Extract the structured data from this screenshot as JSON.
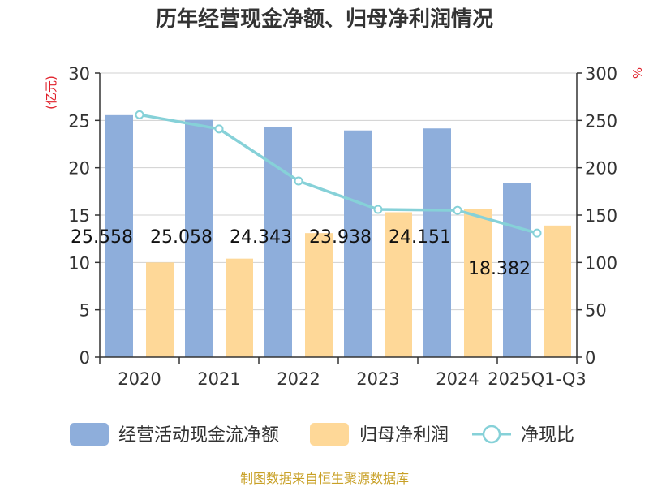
{
  "chart_data": {
    "type": "bar",
    "title": "历年经营现金净额、归母净利润情况",
    "categories": [
      "2020",
      "2021",
      "2022",
      "2023",
      "2024",
      "2025Q1-Q3"
    ],
    "series": [
      {
        "name": "经营活动现金流净额",
        "kind": "bar",
        "axis": "left",
        "values": [
          25.558,
          25.058,
          24.343,
          23.938,
          24.151,
          18.382
        ],
        "labels": [
          "25.558",
          "25.058",
          "24.343",
          "23.938",
          "24.151",
          "18.382"
        ]
      },
      {
        "name": "归母净利润",
        "kind": "bar",
        "axis": "left",
        "values": [
          10.0,
          10.4,
          13.1,
          15.3,
          15.6,
          13.9
        ]
      },
      {
        "name": "净现比",
        "kind": "line",
        "axis": "right",
        "values": [
          256,
          241,
          186,
          156,
          155,
          131
        ]
      }
    ],
    "left_axis": {
      "unit": "(亿元)",
      "ylim": [
        0,
        30
      ],
      "ticks": [
        "0",
        "5",
        "10",
        "15",
        "20",
        "25",
        "30"
      ]
    },
    "right_axis": {
      "unit": "%",
      "ylim": [
        0,
        300
      ],
      "ticks": [
        "0",
        "50",
        "100",
        "150",
        "200",
        "250",
        "300"
      ]
    },
    "grid": true,
    "legend_position": "bottom",
    "colors": {
      "cash_flow": "#8eaedb",
      "net_profit": "#fed898",
      "ratio": "#86d1d8",
      "unit": "#e0202a",
      "source": "#c8a026"
    },
    "source": "制图数据来自恒生聚源数据库"
  }
}
